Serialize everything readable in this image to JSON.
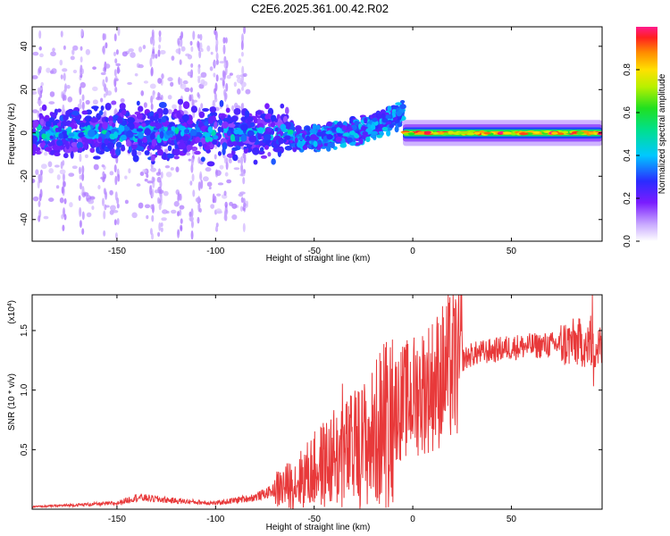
{
  "title": "C2E6.2025.361.00.42.R02",
  "chart_data": [
    {
      "type": "heatmap",
      "xlabel": "Height of straight line (km)",
      "ylabel": "Frequency (Hz)",
      "xlim": [
        -193,
        96
      ],
      "ylim": [
        -50,
        49
      ],
      "xticks": [
        -150,
        -100,
        -50,
        0,
        50
      ],
      "yticks": [
        -40,
        -20,
        0,
        20,
        40
      ],
      "colorbar": {
        "label": "Normalized spectral amplitude",
        "range": [
          0,
          1
        ],
        "ticks": [
          "0.0",
          "0.2",
          "0.4",
          "0.6",
          "0.8"
        ],
        "tick_values": [
          0,
          0.2,
          0.4,
          0.6,
          0.8
        ]
      },
      "bands": [
        {
          "x": [
            -193,
            -60
          ],
          "center": 0,
          "spread": 4,
          "intensity": 0.25
        },
        {
          "x": [
            -60,
            -5
          ],
          "center_from": -3,
          "center_to": 9,
          "spread": 3,
          "intensity": 0.35
        },
        {
          "x": [
            -5,
            96
          ],
          "center": 0,
          "spread": 1.2,
          "intensity": 0.85
        }
      ]
    },
    {
      "type": "line",
      "xlabel": "Height of straight line (km)",
      "ylabel": "SNR (10 * v/v)",
      "multiplier": "(x10^4)",
      "xlim": [
        -193,
        96
      ],
      "ylim": [
        0,
        1.8
      ],
      "xticks": [
        -150,
        -100,
        -50,
        0,
        50
      ],
      "yticks": [
        0.5,
        1.0,
        1.5
      ],
      "ytick_labels": [
        "0.5",
        "1.0",
        "1.5"
      ],
      "color": "#e8393a",
      "envelope": [
        {
          "x": -193,
          "y": 0.02
        },
        {
          "x": -150,
          "y": 0.05
        },
        {
          "x": -140,
          "y": 0.1
        },
        {
          "x": -120,
          "y": 0.07
        },
        {
          "x": -100,
          "y": 0.05
        },
        {
          "x": -80,
          "y": 0.1
        },
        {
          "x": -60,
          "y": 0.22
        },
        {
          "x": -45,
          "y": 0.38
        },
        {
          "x": -30,
          "y": 0.5
        },
        {
          "x": -20,
          "y": 0.6
        },
        {
          "x": -10,
          "y": 0.85
        },
        {
          "x": 0,
          "y": 0.95
        },
        {
          "x": 10,
          "y": 1.05
        },
        {
          "x": 20,
          "y": 1.2
        },
        {
          "x": 30,
          "y": 1.3
        },
        {
          "x": 50,
          "y": 1.36
        },
        {
          "x": 70,
          "y": 1.38
        },
        {
          "x": 85,
          "y": 1.4
        },
        {
          "x": 96,
          "y": 1.35
        }
      ]
    }
  ]
}
